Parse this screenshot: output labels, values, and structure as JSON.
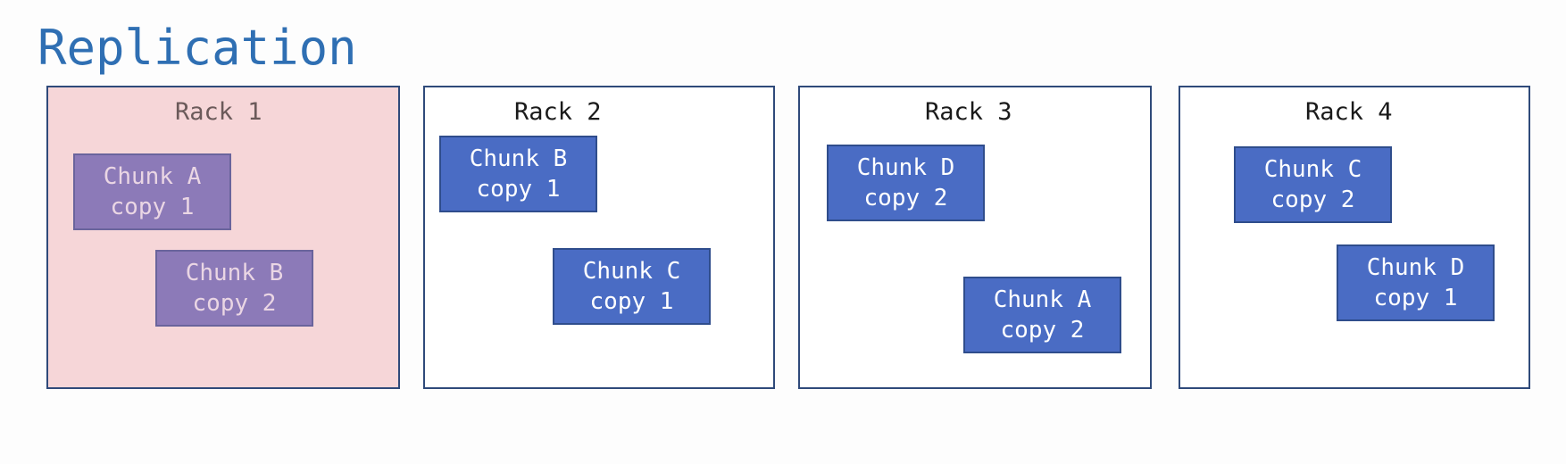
{
  "title": "Replication",
  "colors": {
    "title": "#2f6fb3",
    "chunk_fill": "#4a6cc4",
    "failed_rack_fill": "#f6d6d8",
    "failed_chunk_fill": "#8c7ab8",
    "rack_border": "#2f4a7a"
  },
  "racks": [
    {
      "label": "Rack 1",
      "state": "failed",
      "chunks": [
        {
          "line1": "Chunk A",
          "line2": "copy 1"
        },
        {
          "line1": "Chunk B",
          "line2": "copy 2"
        }
      ]
    },
    {
      "label": "Rack 2",
      "state": "ok",
      "chunks": [
        {
          "line1": "Chunk B",
          "line2": "copy 1"
        },
        {
          "line1": "Chunk C",
          "line2": "copy 1"
        }
      ]
    },
    {
      "label": "Rack 3",
      "state": "ok",
      "chunks": [
        {
          "line1": "Chunk D",
          "line2": "copy 2"
        },
        {
          "line1": "Chunk A",
          "line2": "copy 2"
        }
      ]
    },
    {
      "label": "Rack 4",
      "state": "ok",
      "chunks": [
        {
          "line1": "Chunk C",
          "line2": "copy 2"
        },
        {
          "line1": "Chunk D",
          "line2": "copy 1"
        }
      ]
    }
  ]
}
